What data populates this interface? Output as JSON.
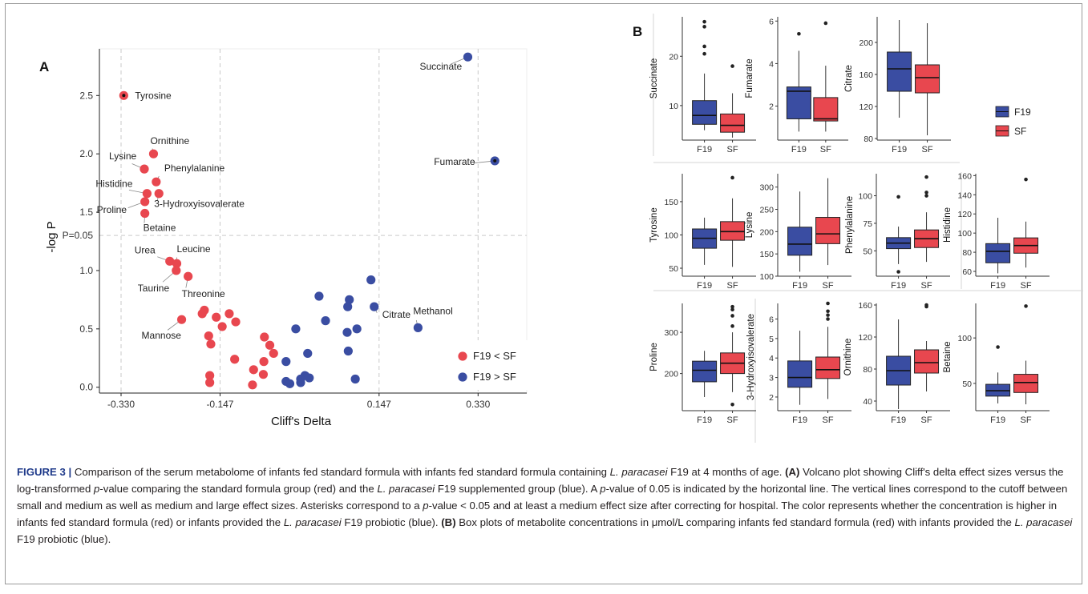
{
  "panel_a": {
    "letter": "A",
    "chart_data": {
      "type": "scatter",
      "xlabel": "Cliff's Delta",
      "ylabel": "-log P",
      "xlim": [
        -0.37,
        0.42
      ],
      "ylim": [
        -0.05,
        2.9
      ],
      "x_ticks": [
        -0.33,
        -0.147,
        0.147,
        0.33
      ],
      "x_tick_labels": [
        "-0.330",
        "-0.147",
        "0.147",
        "0.330"
      ],
      "y_ticks": [
        0.0,
        0.5,
        1.0,
        1.5,
        2.0,
        2.5
      ],
      "y_tick_labels": [
        "0.0",
        "0.5",
        "1.0",
        "1.5",
        "2.0",
        "2.5"
      ],
      "p_line": {
        "value": 1.301,
        "label": "P=0.05"
      },
      "vlines": [
        -0.33,
        -0.147,
        0.147,
        0.33
      ],
      "grid": false,
      "legend_position": "bottom-right",
      "series": [
        {
          "name": "F19 < SF",
          "color": "#e8474f",
          "points": [
            {
              "x": -0.325,
              "y": 2.5,
              "label": "Tyrosine",
              "star": true
            },
            {
              "x": -0.27,
              "y": 2.0,
              "label": "Ornithine"
            },
            {
              "x": -0.287,
              "y": 1.87,
              "label": "Lysine"
            },
            {
              "x": -0.265,
              "y": 1.76,
              "label": "Phenylalanine"
            },
            {
              "x": -0.282,
              "y": 1.66,
              "label": "Histidine"
            },
            {
              "x": -0.26,
              "y": 1.66,
              "label": "3-Hydroxyisovalerate"
            },
            {
              "x": -0.286,
              "y": 1.59,
              "label": "Proline"
            },
            {
              "x": -0.286,
              "y": 1.49,
              "label": "Betaine"
            },
            {
              "x": -0.24,
              "y": 1.08,
              "label": "Urea"
            },
            {
              "x": -0.227,
              "y": 1.06,
              "label": "Leucine"
            },
            {
              "x": -0.228,
              "y": 1.0,
              "label": "Taurine"
            },
            {
              "x": -0.206,
              "y": 0.95,
              "label": "Threonine"
            },
            {
              "x": -0.218,
              "y": 0.58,
              "label": "Mannose"
            },
            {
              "x": -0.176,
              "y": 0.66
            },
            {
              "x": -0.18,
              "y": 0.63
            },
            {
              "x": -0.154,
              "y": 0.6
            },
            {
              "x": -0.13,
              "y": 0.63
            },
            {
              "x": -0.118,
              "y": 0.56
            },
            {
              "x": -0.168,
              "y": 0.44
            },
            {
              "x": -0.164,
              "y": 0.37
            },
            {
              "x": -0.143,
              "y": 0.52
            },
            {
              "x": -0.12,
              "y": 0.24
            },
            {
              "x": -0.166,
              "y": 0.1
            },
            {
              "x": -0.166,
              "y": 0.04
            },
            {
              "x": -0.065,
              "y": 0.43
            },
            {
              "x": -0.055,
              "y": 0.36
            },
            {
              "x": -0.048,
              "y": 0.29
            },
            {
              "x": -0.066,
              "y": 0.22
            },
            {
              "x": -0.085,
              "y": 0.15
            },
            {
              "x": -0.067,
              "y": 0.11
            },
            {
              "x": -0.087,
              "y": 0.02
            }
          ]
        },
        {
          "name": "F19 > SF",
          "color": "#3a4da2",
          "points": [
            {
              "x": 0.311,
              "y": 2.83,
              "label": "Succinate"
            },
            {
              "x": 0.361,
              "y": 1.94,
              "label": "Fumarate",
              "star": true
            },
            {
              "x": 0.132,
              "y": 0.92
            },
            {
              "x": 0.138,
              "y": 0.69,
              "label": "Citrate"
            },
            {
              "x": 0.219,
              "y": 0.51,
              "label": "Methanol"
            },
            {
              "x": 0.036,
              "y": 0.78
            },
            {
              "x": 0.092,
              "y": 0.75
            },
            {
              "x": 0.089,
              "y": 0.69
            },
            {
              "x": 0.09,
              "y": 0.31
            },
            {
              "x": 0.106,
              "y": 0.5
            },
            {
              "x": 0.088,
              "y": 0.47
            },
            {
              "x": 0.048,
              "y": 0.57
            },
            {
              "x": -0.007,
              "y": 0.5
            },
            {
              "x": 0.015,
              "y": 0.29
            },
            {
              "x": -0.025,
              "y": 0.22
            },
            {
              "x": 0.01,
              "y": 0.1
            },
            {
              "x": 0.002,
              "y": 0.07
            },
            {
              "x": 0.018,
              "y": 0.08
            },
            {
              "x": 0.002,
              "y": 0.04
            },
            {
              "x": -0.025,
              "y": 0.05
            },
            {
              "x": -0.018,
              "y": 0.03
            },
            {
              "x": 0.103,
              "y": 0.07
            }
          ]
        }
      ]
    }
  },
  "panel_b": {
    "letter": "B",
    "chart_data": {
      "type": "box",
      "group_labels": [
        "F19",
        "SF"
      ],
      "group_colors": [
        "#3a4da2",
        "#e8474f"
      ],
      "legend": [
        "F19",
        "SF"
      ],
      "legend_position": "right",
      "panels": [
        {
          "metabolite": "Succinate",
          "ylim": [
            3,
            28
          ],
          "ticks": [
            10,
            20
          ],
          "boxes": [
            {
              "min": 5,
              "q1": 6.2,
              "median": 8,
              "q3": 11,
              "max": 16.5,
              "outliers": [
                20.5,
                22,
                26,
                27
              ]
            },
            {
              "min": 3.5,
              "q1": 4.6,
              "median": 6,
              "q3": 8.3,
              "max": 12.5,
              "outliers": [
                18
              ]
            }
          ]
        },
        {
          "metabolite": "Fumarate",
          "ylim": [
            0.4,
            6.2
          ],
          "ticks": [
            2,
            4,
            6
          ],
          "boxes": [
            {
              "min": 0.8,
              "q1": 1.4,
              "median": 2.7,
              "q3": 2.9,
              "max": 4.6,
              "outliers": [
                5.4
              ]
            },
            {
              "min": 0.8,
              "q1": 1.3,
              "median": 1.4,
              "q3": 2.4,
              "max": 3.9,
              "outliers": [
                5.9
              ]
            }
          ]
        },
        {
          "metabolite": "Citrate",
          "ylim": [
            78,
            232
          ],
          "ticks": [
            80,
            120,
            160,
            200
          ],
          "boxes": [
            {
              "min": 106,
              "q1": 139,
              "median": 167,
              "q3": 188,
              "max": 228
            },
            {
              "min": 84,
              "q1": 137,
              "median": 156,
              "q3": 172,
              "max": 224
            }
          ]
        },
        {
          "metabolite": "Tyrosine",
          "ylim": [
            38,
            192
          ],
          "ticks": [
            50,
            100,
            150
          ],
          "boxes": [
            {
              "min": 55,
              "q1": 80,
              "median": 95,
              "q3": 109,
              "max": 126
            },
            {
              "min": 52,
              "q1": 92,
              "median": 105,
              "q3": 120,
              "max": 155,
              "outliers": [
                186
              ]
            }
          ]
        },
        {
          "metabolite": "Lysine",
          "ylim": [
            100,
            330
          ],
          "ticks": [
            100,
            150,
            200,
            250,
            300
          ],
          "boxes": [
            {
              "min": 110,
              "q1": 147,
              "median": 172,
              "q3": 210,
              "max": 290
            },
            {
              "min": 125,
              "q1": 173,
              "median": 195,
              "q3": 232,
              "max": 320
            }
          ]
        },
        {
          "metabolite": "Phenylalanine",
          "ylim": [
            27,
            120
          ],
          "ticks": [
            50,
            75,
            100
          ],
          "boxes": [
            {
              "min": 38,
              "q1": 52,
              "median": 57,
              "q3": 62,
              "max": 72,
              "outliers": [
                99,
                31
              ]
            },
            {
              "min": 40,
              "q1": 53,
              "median": 61,
              "q3": 69,
              "max": 85,
              "outliers": [
                100,
                103,
                117
              ]
            }
          ]
        },
        {
          "metabolite": "Histidine",
          "ylim": [
            55,
            162
          ],
          "ticks": [
            60,
            80,
            100,
            120,
            140,
            160
          ],
          "boxes": [
            {
              "min": 58,
              "q1": 69,
              "median": 81,
              "q3": 89,
              "max": 116
            },
            {
              "min": 64,
              "q1": 79,
              "median": 87,
              "q3": 95,
              "max": 112,
              "outliers": [
                156
              ]
            }
          ]
        },
        {
          "metabolite": "Proline",
          "ylim": [
            110,
            370
          ],
          "ticks": [
            200,
            300
          ],
          "boxes": [
            {
              "min": 143,
              "q1": 180,
              "median": 208,
              "q3": 230,
              "max": 255
            },
            {
              "min": 155,
              "q1": 200,
              "median": 225,
              "q3": 250,
              "max": 300,
              "outliers": [
                315,
                340,
                355,
                362,
                125
              ]
            }
          ]
        },
        {
          "metabolite": "3-Hydroxyisovalerate",
          "ylim": [
            1.3,
            6.8
          ],
          "ticks": [
            2,
            3,
            4,
            5,
            6
          ],
          "boxes": [
            {
              "min": 1.6,
              "q1": 2.5,
              "median": 3,
              "q3": 3.85,
              "max": 5.4
            },
            {
              "min": 1.9,
              "q1": 2.95,
              "median": 3.4,
              "q3": 4.05,
              "max": 5.6,
              "outliers": [
                6.0,
                6.2,
                6.4,
                6.8
              ]
            }
          ]
        },
        {
          "metabolite": "Ornithine",
          "ylim": [
            28,
            162
          ],
          "ticks": [
            40,
            80,
            120,
            160
          ],
          "boxes": [
            {
              "min": 30,
              "q1": 60,
              "median": 78,
              "q3": 96,
              "max": 142
            },
            {
              "min": 52,
              "q1": 75,
              "median": 88,
              "q3": 104,
              "max": 115,
              "outliers": [
                158,
                160
              ]
            }
          ]
        },
        {
          "metabolite": "Betaine",
          "ylim": [
            20,
            138
          ],
          "ticks": [
            50,
            100
          ],
          "boxes": [
            {
              "min": 28,
              "q1": 36,
              "median": 42,
              "q3": 49,
              "max": 62,
              "outliers": [
                90
              ]
            },
            {
              "min": 27,
              "q1": 40,
              "median": 51,
              "q3": 60,
              "max": 75,
              "outliers": [
                135
              ]
            }
          ]
        }
      ]
    }
  },
  "caption": {
    "label": "FIGURE 3 |",
    "s1": "Comparison of the serum metabolome of infants fed standard formula with infants fed standard formula containing ",
    "species_1": "L. paracasei",
    "s2": " F19 at 4 months of age.",
    "a_label": "(A)",
    "s3": " Volcano plot showing Cliff's delta effect sizes versus the log-transformed ",
    "p1": "p",
    "s4": "-value comparing the standard formula group (red) and the ",
    "species_2": "L. paracasei",
    "s5": " F19 supplemented group (blue). A ",
    "p2": "p",
    "s6": "-value of 0.05 is indicated by the horizontal line. The vertical lines correspond to the cutoff between small and medium as well as medium and large effect sizes. Asterisks correspond to a ",
    "p3": "p",
    "s7": "-value < 0.05 and at least a medium effect size after correcting for hospital. The color represents whether the concentration is higher in infants fed standard formula (red) or infants provided the ",
    "species_3": "L. paracasei",
    "s8": " F19 probiotic (blue).",
    "b_label": "(B)",
    "s9": " Box plots of metabolite concentrations in μmol/L comparing infants fed standard formula (red) with infants provided the ",
    "species_4": "L. paracasei",
    "s10": " F19 probiotic (blue)."
  }
}
